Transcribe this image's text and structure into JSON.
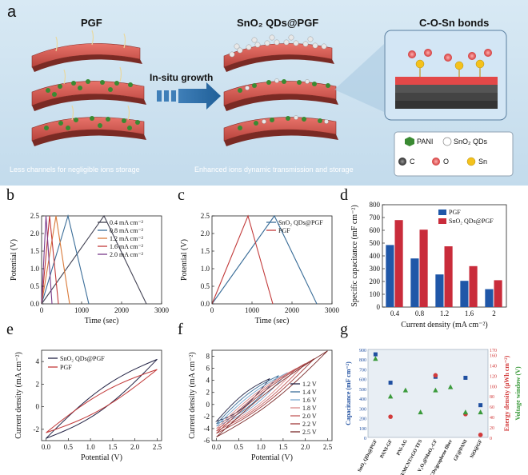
{
  "panel_a": {
    "label": "a",
    "headings": [
      "PGF",
      "SnO₂ QDs@PGF",
      "C-O-Sn bonds"
    ],
    "arrow_label": "In-situ growth",
    "captions": [
      "Less channels for negligible ions storage",
      "Enhanced ions dynamic transmission and storage"
    ],
    "legend": {
      "items": [
        {
          "label": "PANI",
          "color": "#3a8a32"
        },
        {
          "label": "SnO₂ QDs",
          "color": "#ffffff"
        },
        {
          "label": "C",
          "color": "#4a4a4a"
        },
        {
          "label": "O",
          "color": "#e34848"
        },
        {
          "label": "Sn",
          "color": "#f4c21c"
        }
      ]
    }
  },
  "panel_labels": {
    "b": "b",
    "c": "c",
    "d": "d",
    "e": "e",
    "f": "f",
    "g": "g"
  },
  "chart_data": [
    {
      "id": "b",
      "type": "line",
      "xlabel": "Time (sec)",
      "ylabel": "Potential (V)",
      "xlim": [
        0,
        3000
      ],
      "ylim": [
        0,
        2.5
      ],
      "xticks": [
        0,
        1000,
        2000,
        3000
      ],
      "yticks": [
        0.0,
        0.5,
        1.0,
        1.5,
        2.0,
        2.5
      ],
      "legend": [
        "0.4 mA cm⁻²",
        "0.8 mA cm⁻²",
        "1.2 mA cm⁻²",
        "1.6 mA cm⁻²",
        "2.0 mA cm⁻²"
      ],
      "series": [
        {
          "name": "0.4 mA cm⁻²",
          "color": "#444455",
          "x": [
            0,
            1560,
            2620
          ],
          "y": [
            0,
            2.5,
            0
          ]
        },
        {
          "name": "0.8 mA cm⁻²",
          "color": "#3a6d98",
          "x": [
            0,
            660,
            1180
          ],
          "y": [
            0,
            2.5,
            0
          ]
        },
        {
          "name": "1.2 mA cm⁻²",
          "color": "#d97a3a",
          "x": [
            0,
            360,
            700
          ],
          "y": [
            0,
            2.5,
            0
          ]
        },
        {
          "name": "1.6 mA cm⁻²",
          "color": "#c23a3a",
          "x": [
            0,
            200,
            420
          ],
          "y": [
            0,
            2.5,
            0
          ]
        },
        {
          "name": "2.0 mA cm⁻²",
          "color": "#7a3a8a",
          "x": [
            0,
            110,
            260
          ],
          "y": [
            0,
            2.5,
            0
          ]
        }
      ]
    },
    {
      "id": "c",
      "type": "line",
      "xlabel": "Time (sec)",
      "ylabel": "Potential (V)",
      "xlim": [
        0,
        3000
      ],
      "ylim": [
        0,
        2.5
      ],
      "xticks": [
        0,
        1000,
        2000,
        3000
      ],
      "yticks": [
        0.0,
        0.5,
        1.0,
        1.5,
        2.0,
        2.5
      ],
      "legend": [
        "SnO₂ QDs@PGF",
        "PGF"
      ],
      "series": [
        {
          "name": "SnO₂ QDs@PGF",
          "color": "#3a6d98",
          "x": [
            0,
            1560,
            2620
          ],
          "y": [
            0,
            2.5,
            0
          ]
        },
        {
          "name": "PGF",
          "color": "#c23a3a",
          "x": [
            0,
            900,
            1520
          ],
          "y": [
            0,
            2.5,
            0
          ]
        }
      ]
    },
    {
      "id": "d",
      "type": "bar",
      "xlabel": "Current density (mA cm⁻²)",
      "ylabel": "Specific capacitance (mF cm⁻²)",
      "categories": [
        "0.4",
        "0.8",
        "1.2",
        "1.6",
        "2"
      ],
      "ylim": [
        0,
        800
      ],
      "yticks": [
        0,
        100,
        200,
        300,
        400,
        500,
        600,
        700,
        800
      ],
      "legend": [
        "PGF",
        "SnO₂ QDs@PGF"
      ],
      "series": [
        {
          "name": "PGF",
          "color": "#1f57a8",
          "values": [
            485,
            380,
            255,
            205,
            140
          ]
        },
        {
          "name": "SnO₂ QDs@PGF",
          "color": "#c92c3b",
          "values": [
            680,
            605,
            475,
            320,
            210
          ]
        }
      ]
    },
    {
      "id": "e",
      "type": "line",
      "xlabel": "Potential (V)",
      "ylabel": "Current density (mA cm⁻²)",
      "xlim": [
        -0.1,
        2.6
      ],
      "ylim": [
        -3,
        5
      ],
      "xticks": [
        0.0,
        0.5,
        1.0,
        1.5,
        2.0,
        2.5
      ],
      "yticks": [
        -2,
        0,
        2,
        4
      ],
      "legend": [
        "SnO₂ QDs@PGF",
        "PGF"
      ],
      "series": [
        {
          "name": "SnO₂ QDs@PGF",
          "color": "#222244",
          "loop": [
            0,
            -2.8,
            2.5,
            4.2,
            0.9,
            1.0
          ]
        },
        {
          "name": "PGF",
          "color": "#c23a3a",
          "loop": [
            0,
            -2.3,
            2.5,
            3.3,
            0.7,
            0.7
          ]
        }
      ]
    },
    {
      "id": "f",
      "type": "line",
      "xlabel": "Potential (V)",
      "ylabel": "Current density (mA cm⁻²)",
      "xlim": [
        -0.1,
        2.6
      ],
      "ylim": [
        -6,
        9
      ],
      "xticks": [
        0.0,
        0.5,
        1.0,
        1.5,
        2.0,
        2.5
      ],
      "yticks": [
        -6,
        -4,
        -2,
        0,
        2,
        4,
        6,
        8
      ],
      "legend": [
        "1.2 V",
        "1.4 V",
        "1.6 V",
        "1.8 V",
        "2.0 V",
        "2.2 V",
        "2.5 V"
      ],
      "series": [
        {
          "name": "1.2 V",
          "color": "#222244",
          "vmax": 1.2,
          "imax": 4.3,
          "imin": -2.8
        },
        {
          "name": "1.4 V",
          "color": "#3a6d98",
          "vmax": 1.4,
          "imax": 4.8,
          "imin": -3.2
        },
        {
          "name": "1.6 V",
          "color": "#7aa8d0",
          "vmax": 1.6,
          "imax": 5.3,
          "imin": -3.6
        },
        {
          "name": "1.8 V",
          "color": "#d98a8a",
          "vmax": 1.8,
          "imax": 6.0,
          "imin": -4.0
        },
        {
          "name": "2.0 V",
          "color": "#c25a5a",
          "vmax": 2.0,
          "imax": 6.8,
          "imin": -4.4
        },
        {
          "name": "2.2 V",
          "color": "#a03a3a",
          "vmax": 2.2,
          "imax": 7.6,
          "imin": -4.8
        },
        {
          "name": "2.5 V",
          "color": "#7a2a2a",
          "vmax": 2.5,
          "imax": 8.9,
          "imin": -5.4
        }
      ]
    },
    {
      "id": "g",
      "type": "scatter",
      "ylabel_left": "Capacitance (mF cm⁻²)",
      "ylabel_right1": "Energy density (μWh cm⁻²)",
      "ylabel_right2": "Voltage window (V)",
      "categories": [
        "SnO₂ QDs@PGF",
        "PANI-GF",
        "PNi-AG",
        "PANI/MCNT/rGO TFS",
        "V₂O₅@MnO₂-CF",
        "CDs/graphene fiber",
        "GF@PANI",
        "NiO@GF"
      ],
      "yticks_left": [
        0,
        100,
        200,
        300,
        400,
        500,
        600,
        700,
        800,
        900
      ],
      "yticks_right": [
        0,
        20,
        40,
        60,
        80,
        100,
        120,
        140,
        160,
        170
      ],
      "series": [
        {
          "name": "Capacitance",
          "color": "#1f4fa0",
          "marker": "square",
          "values": [
            850,
            560,
            null,
            null,
            620,
            null,
            610,
            330
          ]
        },
        {
          "name": "Energy density",
          "color": "#d23a3a",
          "marker": "circle",
          "values": [
            null,
            40,
            null,
            null,
            120,
            null,
            45,
            5
          ]
        },
        {
          "name": "Voltage window",
          "color": "#3a9a3a",
          "marker": "triangle",
          "values": [
            2.5,
            1.3,
            1.5,
            0.8,
            1.5,
            1.6,
            0.8,
            0.8
          ]
        }
      ]
    }
  ]
}
